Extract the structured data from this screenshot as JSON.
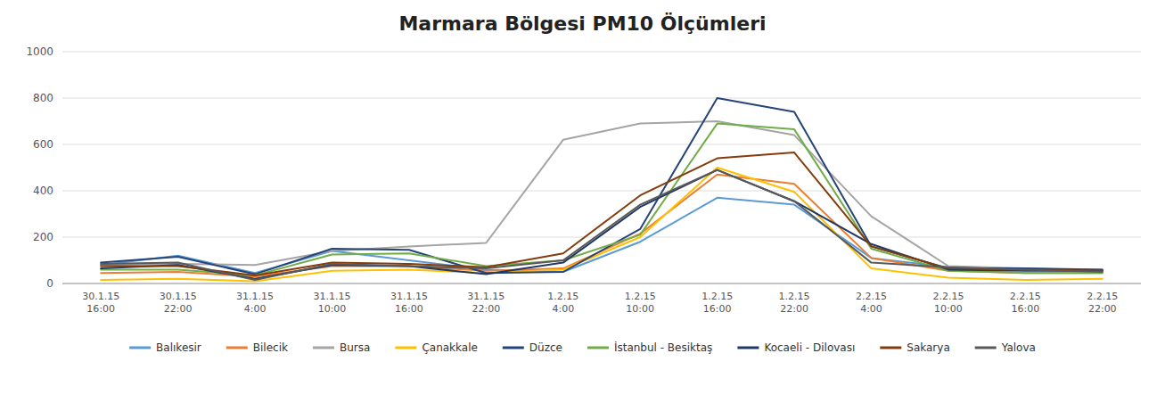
{
  "chart_data": {
    "type": "line",
    "title": "Marmara Bölgesi PM10 Ölçümleri",
    "categories": [
      "30.1.15\n16:00",
      "30.1.15\n22:00",
      "31.1.15\n4:00",
      "31.1.15\n10:00",
      "31.1.15\n16:00",
      "31.1.15\n22:00",
      "1.2.15\n4:00",
      "1.2.15\n10:00",
      "1.2.15\n16:00",
      "1.2.15\n22:00",
      "2.2.15\n4:00",
      "2.2.15\n10:00",
      "2.2.15\n16:00",
      "2.2.15\n22:00"
    ],
    "series": [
      {
        "name": "Balıkesir",
        "color": "#5B9BD5",
        "values": [
          80,
          120,
          45,
          140,
          100,
          60,
          50,
          180,
          370,
          340,
          110,
          70,
          60,
          60
        ]
      },
      {
        "name": "Bilecik",
        "color": "#ED7D31",
        "values": [
          45,
          50,
          30,
          75,
          75,
          55,
          65,
          215,
          470,
          430,
          110,
          55,
          45,
          45
        ]
      },
      {
        "name": "Bursa",
        "color": "#A5A5A5",
        "values": [
          80,
          85,
          80,
          140,
          160,
          175,
          620,
          690,
          700,
          640,
          290,
          75,
          65,
          55
        ]
      },
      {
        "name": "Çanakkale",
        "color": "#FFC000",
        "values": [
          15,
          20,
          10,
          55,
          60,
          45,
          60,
          200,
          500,
          395,
          65,
          25,
          15,
          20
        ]
      },
      {
        "name": "Düzce",
        "color": "#264478",
        "values": [
          90,
          115,
          40,
          150,
          145,
          45,
          50,
          235,
          800,
          740,
          160,
          65,
          65,
          60
        ]
      },
      {
        "name": "İstanbul - Besiktaş",
        "color": "#70AD47",
        "values": [
          60,
          60,
          35,
          125,
          130,
          75,
          100,
          210,
          690,
          665,
          150,
          55,
          45,
          45
        ]
      },
      {
        "name": "Kocaeli - Dilovası",
        "color": "#203864",
        "values": [
          65,
          80,
          20,
          80,
          75,
          40,
          90,
          330,
          490,
          355,
          170,
          60,
          55,
          55
        ]
      },
      {
        "name": "Sakarya",
        "color": "#843C0C",
        "values": [
          75,
          75,
          35,
          90,
          85,
          70,
          130,
          380,
          540,
          565,
          160,
          65,
          60,
          55
        ]
      },
      {
        "name": "Yalova",
        "color": "#595959",
        "values": [
          85,
          90,
          15,
          85,
          75,
          65,
          100,
          340,
          490,
          355,
          90,
          70,
          60,
          50
        ]
      }
    ],
    "ylim": [
      0,
      1000
    ],
    "yticks": [
      0,
      200,
      400,
      600,
      800,
      1000
    ],
    "grid": true,
    "legend": "bottom"
  }
}
